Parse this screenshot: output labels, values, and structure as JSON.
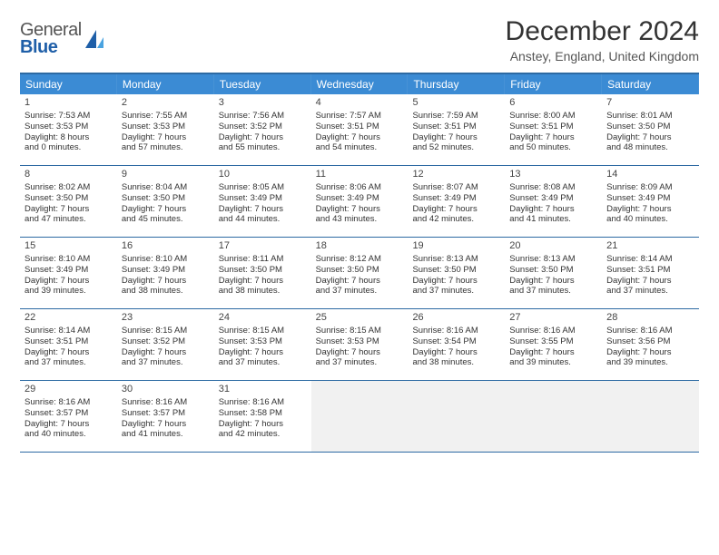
{
  "brand": {
    "line1": "General",
    "line2": "Blue"
  },
  "title": "December 2024",
  "location": "Anstey, England, United Kingdom",
  "colors": {
    "header_bg": "#3b8bd4",
    "header_text": "#ffffff",
    "rule": "#2d6aa3",
    "empty_bg": "#f1f1f1",
    "body_text": "#333333",
    "logo_blue": "#1f5fa8"
  },
  "day_headers": [
    "Sunday",
    "Monday",
    "Tuesday",
    "Wednesday",
    "Thursday",
    "Friday",
    "Saturday"
  ],
  "weeks": [
    [
      {
        "n": "1",
        "sr": "Sunrise: 7:53 AM",
        "ss": "Sunset: 3:53 PM",
        "d1": "Daylight: 8 hours",
        "d2": "and 0 minutes."
      },
      {
        "n": "2",
        "sr": "Sunrise: 7:55 AM",
        "ss": "Sunset: 3:53 PM",
        "d1": "Daylight: 7 hours",
        "d2": "and 57 minutes."
      },
      {
        "n": "3",
        "sr": "Sunrise: 7:56 AM",
        "ss": "Sunset: 3:52 PM",
        "d1": "Daylight: 7 hours",
        "d2": "and 55 minutes."
      },
      {
        "n": "4",
        "sr": "Sunrise: 7:57 AM",
        "ss": "Sunset: 3:51 PM",
        "d1": "Daylight: 7 hours",
        "d2": "and 54 minutes."
      },
      {
        "n": "5",
        "sr": "Sunrise: 7:59 AM",
        "ss": "Sunset: 3:51 PM",
        "d1": "Daylight: 7 hours",
        "d2": "and 52 minutes."
      },
      {
        "n": "6",
        "sr": "Sunrise: 8:00 AM",
        "ss": "Sunset: 3:51 PM",
        "d1": "Daylight: 7 hours",
        "d2": "and 50 minutes."
      },
      {
        "n": "7",
        "sr": "Sunrise: 8:01 AM",
        "ss": "Sunset: 3:50 PM",
        "d1": "Daylight: 7 hours",
        "d2": "and 48 minutes."
      }
    ],
    [
      {
        "n": "8",
        "sr": "Sunrise: 8:02 AM",
        "ss": "Sunset: 3:50 PM",
        "d1": "Daylight: 7 hours",
        "d2": "and 47 minutes."
      },
      {
        "n": "9",
        "sr": "Sunrise: 8:04 AM",
        "ss": "Sunset: 3:50 PM",
        "d1": "Daylight: 7 hours",
        "d2": "and 45 minutes."
      },
      {
        "n": "10",
        "sr": "Sunrise: 8:05 AM",
        "ss": "Sunset: 3:49 PM",
        "d1": "Daylight: 7 hours",
        "d2": "and 44 minutes."
      },
      {
        "n": "11",
        "sr": "Sunrise: 8:06 AM",
        "ss": "Sunset: 3:49 PM",
        "d1": "Daylight: 7 hours",
        "d2": "and 43 minutes."
      },
      {
        "n": "12",
        "sr": "Sunrise: 8:07 AM",
        "ss": "Sunset: 3:49 PM",
        "d1": "Daylight: 7 hours",
        "d2": "and 42 minutes."
      },
      {
        "n": "13",
        "sr": "Sunrise: 8:08 AM",
        "ss": "Sunset: 3:49 PM",
        "d1": "Daylight: 7 hours",
        "d2": "and 41 minutes."
      },
      {
        "n": "14",
        "sr": "Sunrise: 8:09 AM",
        "ss": "Sunset: 3:49 PM",
        "d1": "Daylight: 7 hours",
        "d2": "and 40 minutes."
      }
    ],
    [
      {
        "n": "15",
        "sr": "Sunrise: 8:10 AM",
        "ss": "Sunset: 3:49 PM",
        "d1": "Daylight: 7 hours",
        "d2": "and 39 minutes."
      },
      {
        "n": "16",
        "sr": "Sunrise: 8:10 AM",
        "ss": "Sunset: 3:49 PM",
        "d1": "Daylight: 7 hours",
        "d2": "and 38 minutes."
      },
      {
        "n": "17",
        "sr": "Sunrise: 8:11 AM",
        "ss": "Sunset: 3:50 PM",
        "d1": "Daylight: 7 hours",
        "d2": "and 38 minutes."
      },
      {
        "n": "18",
        "sr": "Sunrise: 8:12 AM",
        "ss": "Sunset: 3:50 PM",
        "d1": "Daylight: 7 hours",
        "d2": "and 37 minutes."
      },
      {
        "n": "19",
        "sr": "Sunrise: 8:13 AM",
        "ss": "Sunset: 3:50 PM",
        "d1": "Daylight: 7 hours",
        "d2": "and 37 minutes."
      },
      {
        "n": "20",
        "sr": "Sunrise: 8:13 AM",
        "ss": "Sunset: 3:50 PM",
        "d1": "Daylight: 7 hours",
        "d2": "and 37 minutes."
      },
      {
        "n": "21",
        "sr": "Sunrise: 8:14 AM",
        "ss": "Sunset: 3:51 PM",
        "d1": "Daylight: 7 hours",
        "d2": "and 37 minutes."
      }
    ],
    [
      {
        "n": "22",
        "sr": "Sunrise: 8:14 AM",
        "ss": "Sunset: 3:51 PM",
        "d1": "Daylight: 7 hours",
        "d2": "and 37 minutes."
      },
      {
        "n": "23",
        "sr": "Sunrise: 8:15 AM",
        "ss": "Sunset: 3:52 PM",
        "d1": "Daylight: 7 hours",
        "d2": "and 37 minutes."
      },
      {
        "n": "24",
        "sr": "Sunrise: 8:15 AM",
        "ss": "Sunset: 3:53 PM",
        "d1": "Daylight: 7 hours",
        "d2": "and 37 minutes."
      },
      {
        "n": "25",
        "sr": "Sunrise: 8:15 AM",
        "ss": "Sunset: 3:53 PM",
        "d1": "Daylight: 7 hours",
        "d2": "and 37 minutes."
      },
      {
        "n": "26",
        "sr": "Sunrise: 8:16 AM",
        "ss": "Sunset: 3:54 PM",
        "d1": "Daylight: 7 hours",
        "d2": "and 38 minutes."
      },
      {
        "n": "27",
        "sr": "Sunrise: 8:16 AM",
        "ss": "Sunset: 3:55 PM",
        "d1": "Daylight: 7 hours",
        "d2": "and 39 minutes."
      },
      {
        "n": "28",
        "sr": "Sunrise: 8:16 AM",
        "ss": "Sunset: 3:56 PM",
        "d1": "Daylight: 7 hours",
        "d2": "and 39 minutes."
      }
    ],
    [
      {
        "n": "29",
        "sr": "Sunrise: 8:16 AM",
        "ss": "Sunset: 3:57 PM",
        "d1": "Daylight: 7 hours",
        "d2": "and 40 minutes."
      },
      {
        "n": "30",
        "sr": "Sunrise: 8:16 AM",
        "ss": "Sunset: 3:57 PM",
        "d1": "Daylight: 7 hours",
        "d2": "and 41 minutes."
      },
      {
        "n": "31",
        "sr": "Sunrise: 8:16 AM",
        "ss": "Sunset: 3:58 PM",
        "d1": "Daylight: 7 hours",
        "d2": "and 42 minutes."
      },
      null,
      null,
      null,
      null
    ]
  ]
}
